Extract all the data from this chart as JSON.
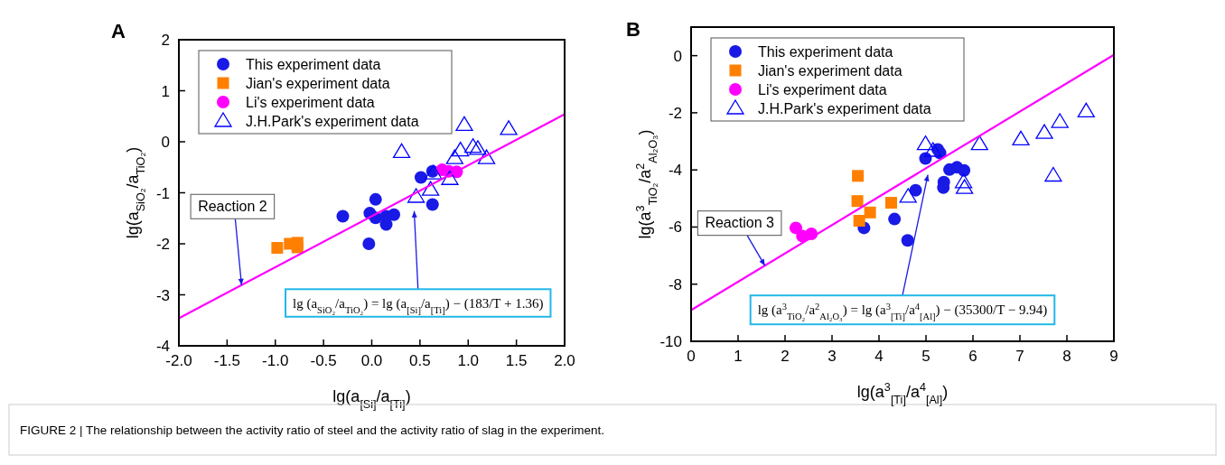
{
  "chart_data": [
    {
      "type": "scatter",
      "title": "A",
      "xlabel": "lg(a$_{[Si]}$/a$_{[Ti]}$)",
      "ylabel": "lg(a$_{SiO₂}$/a$_{TiO₂}$)",
      "xlim": [
        -2,
        2
      ],
      "ylim": [
        -4,
        2
      ],
      "xticks": [
        {
          "value": -2,
          "label": "-2.0"
        },
        {
          "value": -1.5,
          "label": "-1.5"
        },
        {
          "value": -1,
          "label": "-1.0"
        },
        {
          "value": -0.5,
          "label": "-0.5"
        },
        {
          "value": 0,
          "label": "0.0"
        },
        {
          "value": 0.5,
          "label": "0.5"
        },
        {
          "value": 1,
          "label": "1.0"
        },
        {
          "value": 1.5,
          "label": "1.5"
        },
        {
          "value": 2,
          "label": "2.0"
        }
      ],
      "yticks": [
        -4,
        -3,
        -2,
        -1,
        0,
        1,
        2
      ],
      "grid": false,
      "legend": "top left",
      "series": [
        {
          "name": "This experiment data",
          "marker": "circle",
          "color": "#1a1ae6",
          "x": [
            -0.3,
            0.04,
            -0.02,
            0.04,
            0.15,
            0.23,
            0.15,
            -0.03,
            0.51,
            0.63,
            0.63
          ],
          "values": [
            -1.46,
            -1.13,
            -1.4,
            -1.49,
            -1.62,
            -1.43,
            -1.46,
            -2.0,
            -0.7,
            -0.58,
            -1.23
          ]
        },
        {
          "name": "Jian's experiment data",
          "marker": "square",
          "color": "#ff8000",
          "x": [
            -0.98,
            -0.85,
            -0.77,
            -0.77
          ],
          "values": [
            -2.08,
            -2.0,
            -2.07,
            -1.98
          ]
        },
        {
          "name": "Li's experiment data",
          "marker": "circle",
          "color": "#ff00ff",
          "x": [
            0.73,
            0.8,
            0.88
          ],
          "values": [
            -0.55,
            -0.58,
            -0.59
          ]
        },
        {
          "name": "J.H.Park's experiment data",
          "marker": "triangle",
          "color": "#0000ff",
          "x": [
            0.31,
            0.96,
            1.42,
            0.92,
            0.86,
            1.05,
            1.1,
            1.19,
            0.81,
            0.61,
            0.46,
            0.64
          ],
          "values": [
            -0.2,
            0.33,
            0.25,
            -0.17,
            -0.32,
            -0.1,
            -0.14,
            -0.32,
            -0.73,
            -0.94,
            -1.08,
            -0.62
          ]
        },
        {
          "type": "line",
          "marker": "none",
          "color": "#ff00ff",
          "x": [
            -2,
            2
          ],
          "values": [
            -3.46,
            0.54
          ]
        }
      ],
      "annotations": [
        {
          "text": "Reaction 2",
          "x": -1.35,
          "y": -2.81
        },
        "lg (a$_{SiO₂}$/a$_{TiO₂}$) = lg (a$_{[Si]}$/a$_{[Ti]}$) − (183/T + 1.36)",
        "FIGURE 2 | The relationship between the activity ratio of steel and the activity ratio of slag in the experiment."
      ]
    },
    {
      "type": "scatter",
      "title": "B",
      "xlabel": "lg(a$^{3}$$_{[Ti]}$/a$^{4}$$_{[Al]}$)",
      "ylabel": "lg(a$^{3}$$_{TiO₂}$/a$^{2}$$_{Al₂O₃}$)",
      "xlim": [
        0,
        9
      ],
      "ylim": [
        -10,
        1
      ],
      "xticks": [
        0,
        1,
        2,
        3,
        4,
        5,
        6,
        7,
        8,
        9
      ],
      "yticks": [
        -10,
        -8,
        -6,
        -4,
        -2,
        0
      ],
      "grid": false,
      "legend": "top left",
      "series": [
        {
          "name": "This experiment data",
          "marker": "circle",
          "color": "#1a1ae6",
          "x": [
            4.99,
            5.25,
            5.3,
            5.5,
            5.66,
            5.81,
            5.38,
            5.37,
            4.78,
            4.33,
            3.68,
            4.61
          ],
          "values": [
            -3.6,
            -3.28,
            -3.41,
            -3.99,
            -3.91,
            -4.02,
            -4.43,
            -4.62,
            -4.71,
            -5.72,
            -6.03,
            -6.47
          ]
        },
        {
          "name": "Jian's experiment data",
          "marker": "square",
          "color": "#ff8000",
          "x": [
            3.55,
            3.54,
            3.58,
            3.81,
            4.26
          ],
          "values": [
            -4.21,
            -5.09,
            -5.78,
            -5.49,
            -5.15
          ]
        },
        {
          "name": "Li's experiment data",
          "marker": "circle",
          "color": "#ff00ff",
          "x": [
            2.23,
            2.37,
            2.56
          ],
          "values": [
            -6.03,
            -6.32,
            -6.24
          ]
        },
        {
          "name": "J.H.Park's experiment data",
          "marker": "triangle",
          "color": "#0000ff",
          "x": [
            4.99,
            5.15,
            4.62,
            5.8,
            5.82,
            6.14,
            7.02,
            7.52,
            7.85,
            8.41,
            7.71
          ],
          "values": [
            -3.1,
            -3.33,
            -4.94,
            -4.43,
            -4.63,
            -3.1,
            -2.93,
            -2.7,
            -2.32,
            -1.95,
            -4.2
          ]
        },
        {
          "type": "line",
          "marker": "none",
          "color": "#ff00ff",
          "x": [
            0,
            9
          ],
          "values": [
            -8.91,
            0.03
          ]
        }
      ],
      "annotations": [
        {
          "text": "Reaction 3",
          "x": 1.57,
          "y": -7.35
        },
        "lg (a$^{3}$$_{TiO₂}$/a$^{2}$$_{Al₂O₃}$) = lg (a$^{3}$$_{[Ti]}$/a$^{4}$$_{[Al]}$) − (35300/T − 9.94)"
      ]
    }
  ]
}
